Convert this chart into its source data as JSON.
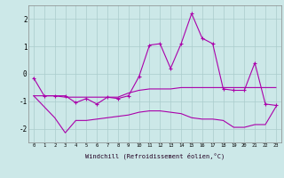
{
  "xlabel": "Windchill (Refroidissement éolien,°C)",
  "background_color": "#cce8e8",
  "grid_color": "#aacccc",
  "line_color": "#aa00aa",
  "x": [
    0,
    1,
    2,
    3,
    4,
    5,
    6,
    7,
    8,
    9,
    10,
    11,
    12,
    13,
    14,
    15,
    16,
    17,
    18,
    19,
    20,
    21,
    22,
    23
  ],
  "line1": [
    -0.15,
    -0.8,
    -0.8,
    -0.8,
    -1.05,
    -0.9,
    -1.1,
    -0.85,
    -0.9,
    -0.8,
    -0.1,
    1.05,
    1.1,
    0.2,
    1.1,
    2.2,
    1.3,
    1.1,
    -0.55,
    -0.6,
    -0.6,
    0.4,
    -1.1,
    -1.15
  ],
  "line2": [
    -0.8,
    -0.8,
    -0.8,
    -0.85,
    -0.85,
    -0.85,
    -0.85,
    -0.85,
    -0.85,
    -0.7,
    -0.6,
    -0.55,
    -0.55,
    -0.55,
    -0.5,
    -0.5,
    -0.5,
    -0.5,
    -0.5,
    -0.5,
    -0.5,
    -0.5,
    -0.5,
    -0.5
  ],
  "line3": [
    -0.8,
    -1.2,
    -1.6,
    -2.15,
    -1.7,
    -1.7,
    -1.65,
    -1.6,
    -1.55,
    -1.5,
    -1.4,
    -1.35,
    -1.35,
    -1.4,
    -1.45,
    -1.6,
    -1.65,
    -1.65,
    -1.7,
    -1.95,
    -1.95,
    -1.85,
    -1.85,
    -1.2
  ],
  "ylim": [
    -2.5,
    2.5
  ],
  "yticks": [
    -2,
    -1,
    0,
    1,
    2
  ],
  "xticks": [
    0,
    1,
    2,
    3,
    4,
    5,
    6,
    7,
    8,
    9,
    10,
    11,
    12,
    13,
    14,
    15,
    16,
    17,
    18,
    19,
    20,
    21,
    22,
    23
  ]
}
